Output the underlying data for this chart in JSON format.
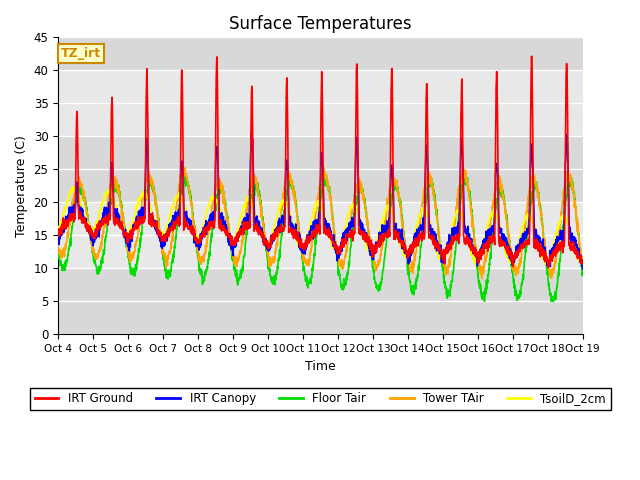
{
  "title": "Surface Temperatures",
  "xlabel": "Time",
  "ylabel": "Temperature (C)",
  "ylim": [
    0,
    45
  ],
  "annotation_text": "TZ_irt",
  "annotation_color": "#cc8800",
  "annotation_bg": "#ffffcc",
  "background_color": "#e8e8e8",
  "grid_color": "white",
  "series": {
    "IRT Ground": {
      "color": "red",
      "lw": 1.2
    },
    "IRT Canopy": {
      "color": "blue",
      "lw": 1.2
    },
    "Floor Tair": {
      "color": "#00dd00",
      "lw": 1.2
    },
    "Tower TAir": {
      "color": "orange",
      "lw": 1.2
    },
    "TsoilD_2cm": {
      "color": "yellow",
      "lw": 1.2
    }
  },
  "tick_labels": [
    "Oct 4",
    "Oct 5",
    "Oct 6",
    "Oct 7",
    "Oct 8",
    "Oct 9",
    "Oct 10",
    "Oct 11",
    "Oct 12",
    "Oct 13",
    "Oct 14",
    "Oct 15",
    "Oct 16",
    "Oct 17",
    "Oct 18",
    "Oct 19"
  ],
  "yticks": [
    0,
    5,
    10,
    15,
    20,
    25,
    30,
    35,
    40,
    45
  ]
}
